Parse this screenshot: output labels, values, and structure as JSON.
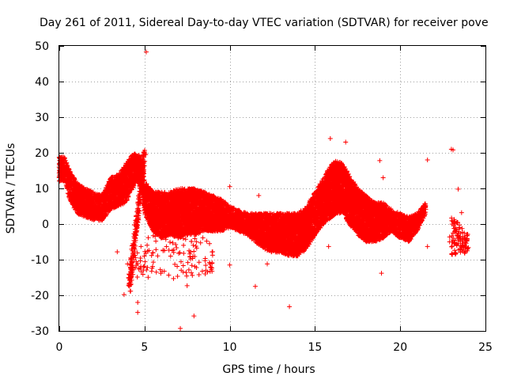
{
  "chart_data": {
    "type": "scatter",
    "title": "Day 261 of 2011, Sidereal Day-to-day VTEC variation (SDTVAR) for receiver pove",
    "xlabel": "GPS time / hours",
    "ylabel": "SDTVAR / TECUs",
    "xlim": [
      0,
      25
    ],
    "ylim": [
      -30,
      50
    ],
    "xticks": [
      0,
      5,
      10,
      15,
      20,
      25
    ],
    "yticks": [
      -30,
      -20,
      -10,
      0,
      10,
      20,
      30,
      40,
      50
    ],
    "grid": true,
    "marker": "+",
    "color": "#ff0000",
    "series": [
      {
        "name": "SDTVAR",
        "band": [
          [
            0.0,
            12,
            19
          ],
          [
            0.3,
            12,
            19
          ],
          [
            0.6,
            7,
            15
          ],
          [
            1.0,
            3,
            12
          ],
          [
            1.5,
            2,
            10
          ],
          [
            2.0,
            1,
            9
          ],
          [
            2.5,
            1,
            8
          ],
          [
            3.0,
            4,
            13
          ],
          [
            3.5,
            5,
            14
          ],
          [
            3.9,
            6,
            17
          ],
          [
            4.2,
            9,
            19
          ],
          [
            4.5,
            12,
            20
          ],
          [
            4.8,
            11,
            19
          ],
          [
            5.0,
            3,
            12
          ],
          [
            5.5,
            -2,
            9
          ],
          [
            6.0,
            -4,
            9
          ],
          [
            6.5,
            -3,
            9
          ],
          [
            7.0,
            -4,
            10
          ],
          [
            7.5,
            -3,
            10
          ],
          [
            8.0,
            -3,
            10
          ],
          [
            8.5,
            -2,
            9
          ],
          [
            9.0,
            -2,
            8
          ],
          [
            9.5,
            -2,
            7
          ],
          [
            10.0,
            -1,
            5
          ],
          [
            10.5,
            -2,
            4
          ],
          [
            11.0,
            -3,
            3
          ],
          [
            11.5,
            -5,
            3
          ],
          [
            12.0,
            -7,
            3
          ],
          [
            12.5,
            -8,
            3
          ],
          [
            13.0,
            -8,
            3
          ],
          [
            13.5,
            -9,
            3
          ],
          [
            14.0,
            -9,
            3
          ],
          [
            14.5,
            -7,
            5
          ],
          [
            15.0,
            -3,
            9
          ],
          [
            15.5,
            0,
            13
          ],
          [
            16.0,
            2,
            17
          ],
          [
            16.3,
            3,
            18
          ],
          [
            16.6,
            3,
            17
          ],
          [
            17.0,
            0,
            14
          ],
          [
            17.5,
            -3,
            10
          ],
          [
            18.0,
            -5,
            8
          ],
          [
            18.5,
            -5,
            6
          ],
          [
            19.0,
            -4,
            6
          ],
          [
            19.5,
            -2,
            4
          ],
          [
            20.0,
            -4,
            3
          ],
          [
            20.5,
            -5,
            2
          ],
          [
            21.0,
            -2,
            3
          ],
          [
            21.5,
            3,
            6
          ]
        ],
        "spike_from": [
          4.1,
          -18
        ],
        "spike_to": [
          5.0,
          20
        ],
        "tail_range": [
          23.0,
          24.0
        ],
        "tail_band": [
          -9,
          3
        ],
        "outliers": [
          [
            5.1,
            48.3
          ],
          [
            7.1,
            -29.3
          ],
          [
            7.9,
            -25.8
          ],
          [
            4.6,
            -24.8
          ],
          [
            4.6,
            -22.0
          ],
          [
            3.8,
            -19.8
          ],
          [
            11.5,
            -17.5
          ],
          [
            13.5,
            -23.2
          ],
          [
            10.0,
            -11.5
          ],
          [
            12.2,
            -11.2
          ],
          [
            18.9,
            -13.8
          ],
          [
            23.0,
            21.0
          ],
          [
            23.1,
            20.8
          ],
          [
            21.6,
            18.0
          ],
          [
            18.8,
            17.8
          ],
          [
            16.8,
            23.0
          ],
          [
            15.9,
            24.0
          ],
          [
            10.0,
            10.5
          ],
          [
            11.7,
            8.0
          ],
          [
            19.0,
            13.0
          ],
          [
            23.4,
            9.8
          ],
          [
            21.6,
            -6.3
          ],
          [
            15.8,
            -6.3
          ],
          [
            6.7,
            -15.3
          ],
          [
            7.5,
            -17.3
          ],
          [
            4.0,
            -11.2
          ],
          [
            3.4,
            -7.8
          ],
          [
            22.9,
            -5.0
          ],
          [
            22.9,
            -3.6
          ],
          [
            23.6,
            3.2
          ]
        ]
      }
    ]
  }
}
